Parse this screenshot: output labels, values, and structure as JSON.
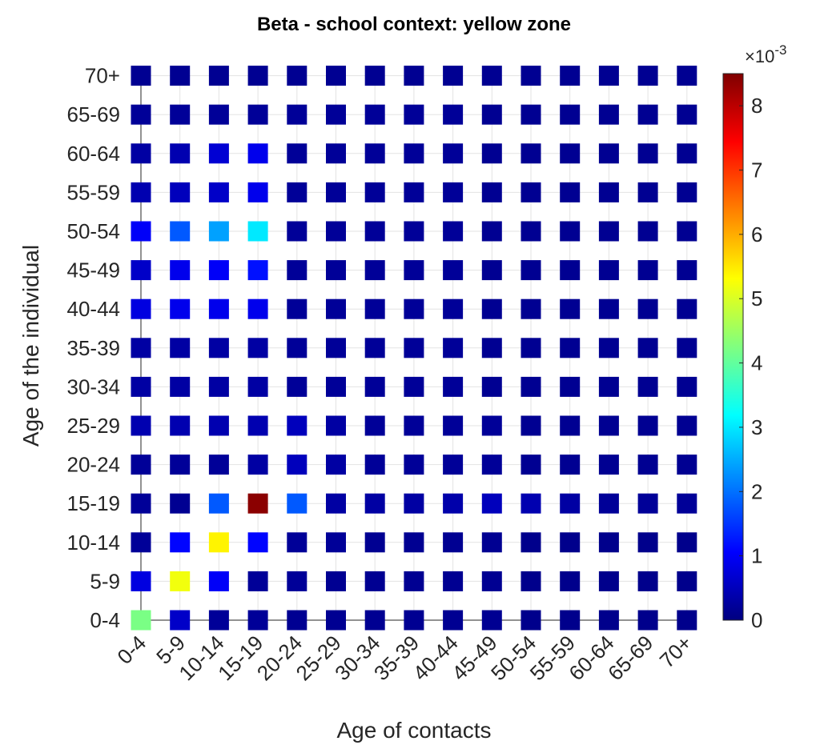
{
  "chart_data": {
    "type": "heatmap",
    "title": "Beta - school context: yellow zone",
    "xlabel": "Age of contacts",
    "ylabel": "Age of the individual",
    "x_categories": [
      "0-4",
      "5-9",
      "10-14",
      "15-19",
      "20-24",
      "25-29",
      "30-34",
      "35-39",
      "40-44",
      "45-49",
      "50-54",
      "55-59",
      "60-64",
      "65-69",
      "70+"
    ],
    "y_categories": [
      "0-4",
      "5-9",
      "10-14",
      "15-19",
      "20-24",
      "25-29",
      "30-34",
      "35-39",
      "40-44",
      "45-49",
      "50-54",
      "55-59",
      "60-64",
      "65-69",
      "70+"
    ],
    "z": [
      [
        4.2,
        0.6,
        0.2,
        0.2,
        0.15,
        0.15,
        0.15,
        0.15,
        0.15,
        0.15,
        0.1,
        0.1,
        0.1,
        0.1,
        0.1
      ],
      [
        0.8,
        5.2,
        1.0,
        0.2,
        0.2,
        0.15,
        0.15,
        0.15,
        0.15,
        0.15,
        0.1,
        0.1,
        0.1,
        0.1,
        0.1
      ],
      [
        0.2,
        1.1,
        5.4,
        1.1,
        0.2,
        0.2,
        0.15,
        0.15,
        0.15,
        0.15,
        0.1,
        0.1,
        0.1,
        0.1,
        0.1
      ],
      [
        0.2,
        0.15,
        1.8,
        8.4,
        1.8,
        0.3,
        0.3,
        0.3,
        0.35,
        0.5,
        0.4,
        0.3,
        0.2,
        0.2,
        0.2
      ],
      [
        0.2,
        0.2,
        0.2,
        0.3,
        0.5,
        0.3,
        0.2,
        0.2,
        0.2,
        0.2,
        0.15,
        0.15,
        0.15,
        0.15,
        0.15
      ],
      [
        0.4,
        0.4,
        0.4,
        0.4,
        0.5,
        0.3,
        0.2,
        0.2,
        0.2,
        0.2,
        0.15,
        0.15,
        0.15,
        0.15,
        0.15
      ],
      [
        0.3,
        0.3,
        0.3,
        0.3,
        0.2,
        0.2,
        0.2,
        0.2,
        0.2,
        0.15,
        0.15,
        0.15,
        0.15,
        0.15,
        0.15
      ],
      [
        0.3,
        0.3,
        0.3,
        0.3,
        0.2,
        0.2,
        0.2,
        0.2,
        0.2,
        0.15,
        0.15,
        0.15,
        0.15,
        0.15,
        0.15
      ],
      [
        0.8,
        0.9,
        0.9,
        0.9,
        0.2,
        0.2,
        0.2,
        0.2,
        0.2,
        0.15,
        0.15,
        0.15,
        0.15,
        0.15,
        0.15
      ],
      [
        0.6,
        0.9,
        1.0,
        1.2,
        0.2,
        0.2,
        0.2,
        0.2,
        0.2,
        0.15,
        0.15,
        0.15,
        0.15,
        0.15,
        0.15
      ],
      [
        1.0,
        1.8,
        2.4,
        3.0,
        0.2,
        0.2,
        0.2,
        0.2,
        0.2,
        0.15,
        0.15,
        0.15,
        0.15,
        0.15,
        0.15
      ],
      [
        0.4,
        0.5,
        0.6,
        0.9,
        0.2,
        0.2,
        0.2,
        0.2,
        0.2,
        0.15,
        0.15,
        0.15,
        0.15,
        0.15,
        0.15
      ],
      [
        0.3,
        0.4,
        0.7,
        0.9,
        0.2,
        0.2,
        0.2,
        0.2,
        0.2,
        0.15,
        0.15,
        0.15,
        0.15,
        0.15,
        0.15
      ],
      [
        0.2,
        0.2,
        0.2,
        0.2,
        0.2,
        0.2,
        0.2,
        0.2,
        0.2,
        0.15,
        0.15,
        0.15,
        0.15,
        0.15,
        0.15
      ],
      [
        0.15,
        0.15,
        0.15,
        0.15,
        0.15,
        0.15,
        0.15,
        0.15,
        0.15,
        0.15,
        0.15,
        0.15,
        0.15,
        0.15,
        0.15
      ]
    ],
    "clim": [
      0,
      8.5
    ],
    "cticks": [
      0,
      1,
      2,
      3,
      4,
      5,
      6,
      7,
      8
    ],
    "colorbar_multiplier": "×10",
    "colorbar_exponent": "-3",
    "colormap": "jet",
    "grid": true
  }
}
